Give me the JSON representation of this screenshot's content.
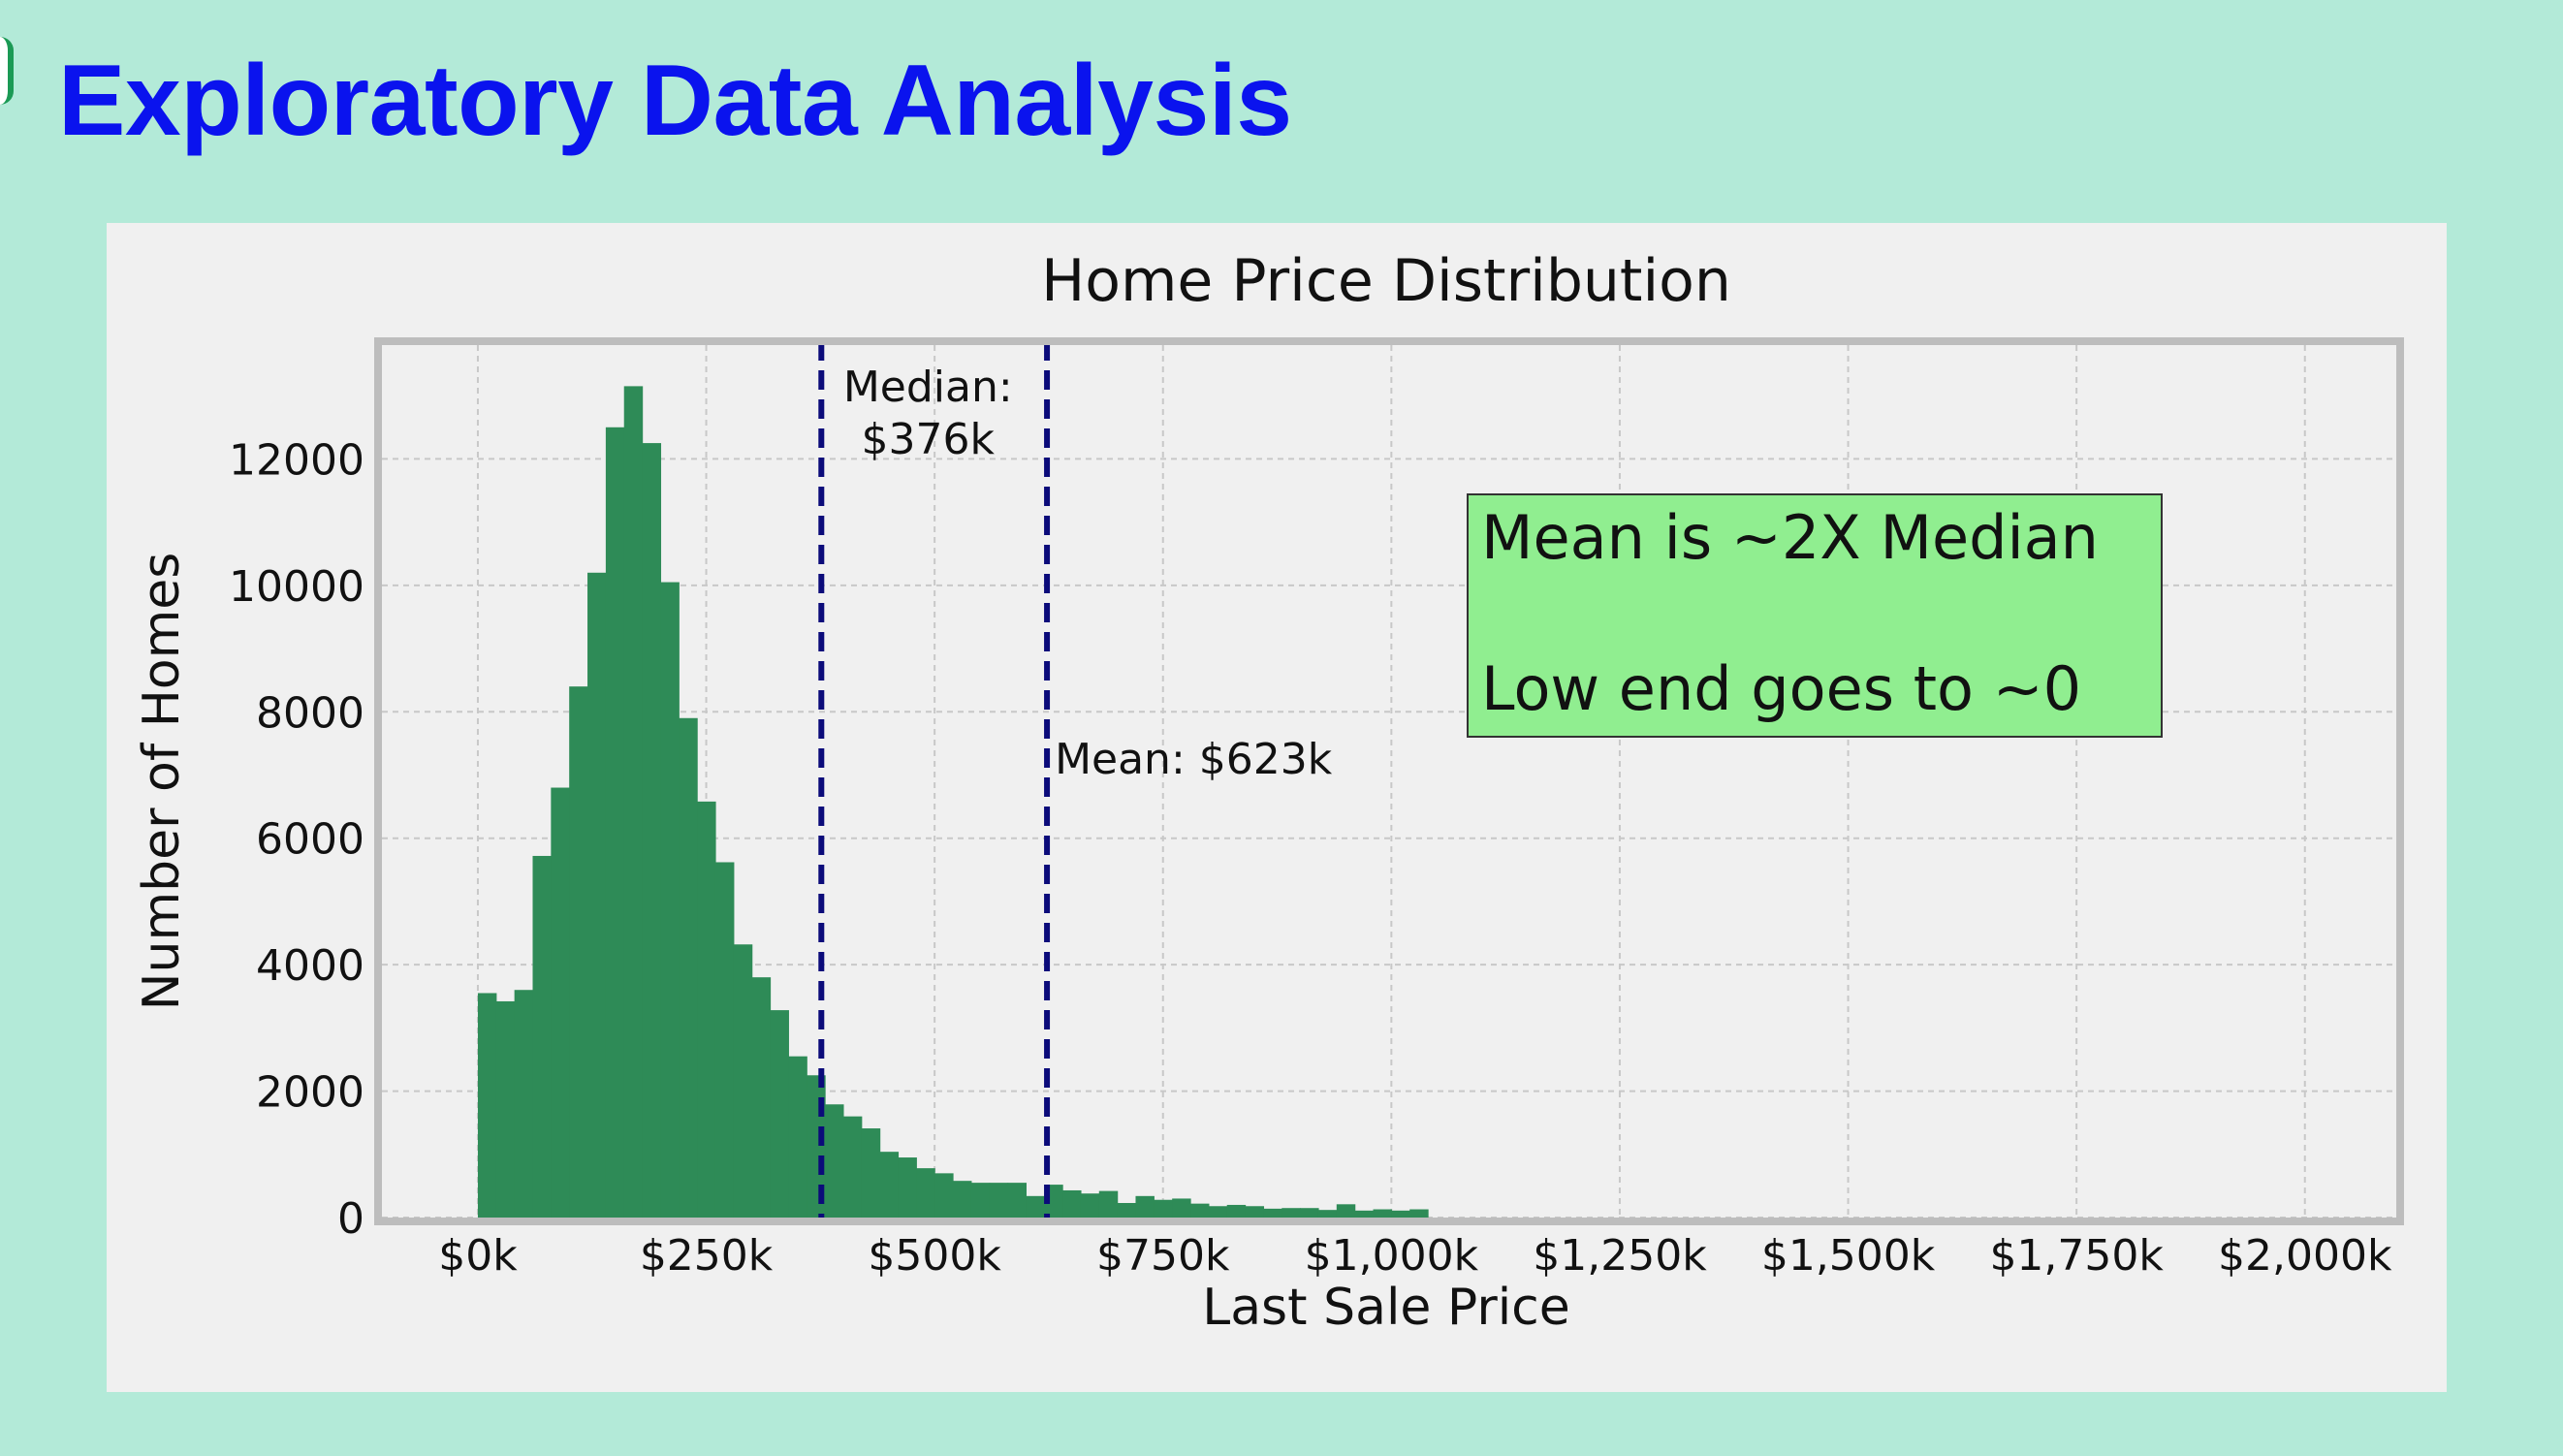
{
  "slide": {
    "title": "Exploratory Data Analysis"
  },
  "chart_data": {
    "type": "bar",
    "subtype": "histogram",
    "title": "Home Price Distribution",
    "xlabel": "Last Sale Price",
    "ylabel": "Number of Homes",
    "xlim": [
      -210,
      4200
    ],
    "ylim": [
      0,
      13800
    ],
    "bin_width": 40,
    "bin_start": 0,
    "grid": true,
    "bar_color": "#2e8b57",
    "x_ticks": [
      {
        "value": 0,
        "label": "$0k"
      },
      {
        "value": 500,
        "label": "$250k"
      },
      {
        "value": 1000,
        "label": "$500k"
      },
      {
        "value": 1500,
        "label": "$750k"
      },
      {
        "value": 2000,
        "label": "$1,000k"
      },
      {
        "value": 2500,
        "label": "$1,250k"
      },
      {
        "value": 3000,
        "label": "$1,500k"
      },
      {
        "value": 3500,
        "label": "$1,750k"
      },
      {
        "value": 4000,
        "label": "$2,000k"
      }
    ],
    "y_ticks": [
      {
        "value": 0,
        "label": "0"
      },
      {
        "value": 2000,
        "label": "2000"
      },
      {
        "value": 4000,
        "label": "4000"
      },
      {
        "value": 6000,
        "label": "6000"
      },
      {
        "value": 8000,
        "label": "8000"
      },
      {
        "value": 10000,
        "label": "10000"
      },
      {
        "value": 12000,
        "label": "12000"
      }
    ],
    "values": [
      3550,
      3420,
      3600,
      5720,
      6800,
      8400,
      10200,
      12500,
      13150,
      12250,
      10050,
      7900,
      6580,
      5620,
      4320,
      3800,
      3280,
      2550,
      2250,
      1790,
      1600,
      1410,
      1040,
      950,
      780,
      700,
      580,
      550,
      550,
      550,
      340,
      520,
      430,
      380,
      420,
      230,
      340,
      280,
      300,
      220,
      180,
      200,
      180,
      140,
      150,
      150,
      120,
      210,
      110,
      130,
      110,
      130
    ],
    "reference_lines": [
      {
        "name": "median",
        "x": 752,
        "label_lines": [
          "Median:",
          "$376k"
        ],
        "color": "#0b0b7a"
      },
      {
        "name": "mean",
        "x": 1246,
        "label_lines": [
          "Mean: $623k"
        ],
        "color": "#0b0b7a"
      }
    ],
    "annotation_box": {
      "lines": [
        "Mean is ~2X Median",
        "",
        "Low end goes to ~0"
      ],
      "background": "#90ee90",
      "placement": "upper-right"
    }
  }
}
